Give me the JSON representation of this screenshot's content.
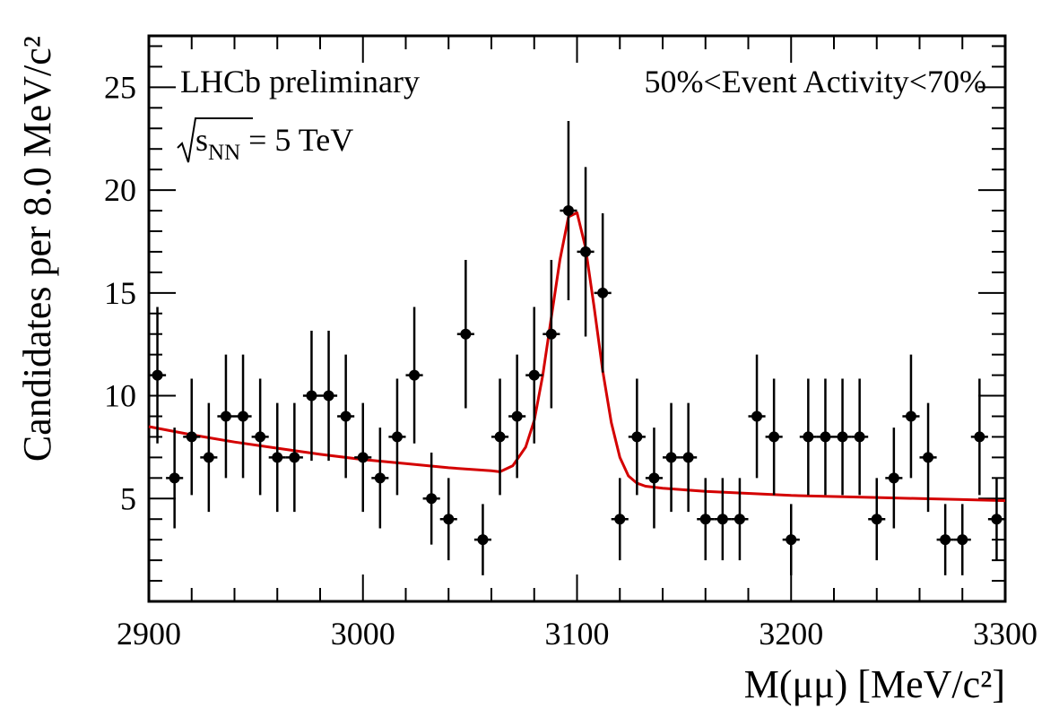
{
  "chart_data": {
    "type": "scatter",
    "xlabel": "M(μμ) [MeV/c²]",
    "ylabel": "Candidates per 8.0 MeV/c²",
    "xlim": [
      2900,
      3300
    ],
    "ylim": [
      0,
      27.5
    ],
    "xticks": [
      2900,
      3000,
      3100,
      3200,
      3300
    ],
    "yticks": [
      5,
      10,
      15,
      20,
      25
    ],
    "xtick_labels": [
      "2900",
      "3000",
      "3100",
      "3200",
      "3300"
    ],
    "ytick_labels": [
      "5",
      "10",
      "15",
      "20",
      "25"
    ],
    "bin_width": 8,
    "annotations": {
      "experiment": "LHCb preliminary",
      "energy_prefix": "s",
      "energy_sub": "NN",
      "energy_value": " = 5 TeV",
      "activity": "50%<Event Activity<70%"
    },
    "series": [
      {
        "kind": "data-points",
        "x": [
          2904,
          2912,
          2920,
          2928,
          2936,
          2944,
          2952,
          2960,
          2968,
          2976,
          2984,
          2992,
          3000,
          3008,
          3016,
          3024,
          3032,
          3040,
          3048,
          3056,
          3064,
          3072,
          3080,
          3088,
          3096,
          3104,
          3112,
          3120,
          3128,
          3136,
          3144,
          3152,
          3160,
          3168,
          3176,
          3184,
          3192,
          3200,
          3208,
          3216,
          3224,
          3232,
          3240,
          3248,
          3256,
          3264,
          3272,
          3280,
          3288,
          3296
        ],
        "y": [
          11,
          6,
          8,
          7,
          9,
          9,
          8,
          7,
          7,
          10,
          10,
          9,
          7,
          6,
          8,
          11,
          5,
          4,
          13,
          3,
          8,
          9,
          11,
          13,
          19,
          17,
          15,
          4,
          8,
          6,
          7,
          7,
          4,
          4,
          4,
          9,
          8,
          3,
          8,
          8,
          8,
          8,
          4,
          6,
          9,
          7,
          3,
          3,
          8,
          4
        ]
      },
      {
        "kind": "fit",
        "color": "#d40000",
        "x": [
          2900,
          2920,
          2940,
          2960,
          2980,
          3000,
          3020,
          3040,
          3060,
          3064,
          3070,
          3076,
          3080,
          3084,
          3088,
          3092,
          3096,
          3100,
          3104,
          3108,
          3112,
          3116,
          3120,
          3124,
          3128,
          3132,
          3140,
          3160,
          3180,
          3200,
          3220,
          3240,
          3260,
          3280,
          3300
        ],
        "y": [
          8.5,
          8.1,
          7.75,
          7.45,
          7.15,
          6.9,
          6.7,
          6.5,
          6.35,
          6.3,
          6.6,
          7.5,
          8.8,
          11.0,
          13.8,
          16.6,
          18.7,
          18.9,
          17.2,
          14.3,
          11.2,
          8.7,
          7.0,
          6.1,
          5.75,
          5.6,
          5.5,
          5.35,
          5.25,
          5.15,
          5.1,
          5.05,
          5.0,
          4.95,
          4.9
        ]
      }
    ],
    "grid": false,
    "legend": "none"
  }
}
